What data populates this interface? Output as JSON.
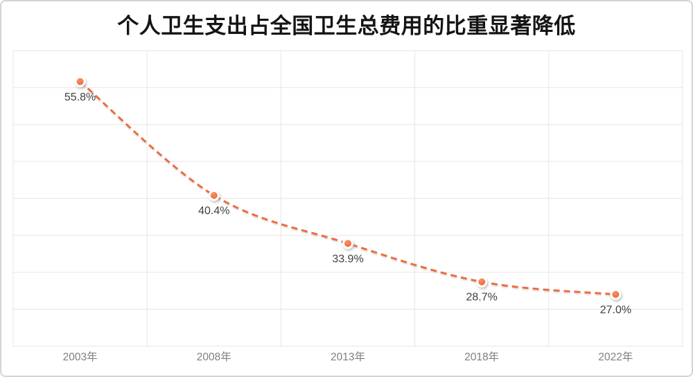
{
  "window": {
    "background": "#ffffff",
    "frame_border_color": "#d4d4d4"
  },
  "chart_data": {
    "type": "line",
    "title": "个人卫生支出占全国卫生总费用的比重显著降低",
    "categories": [
      "2003年",
      "2008年",
      "2013年",
      "2018年",
      "2022年"
    ],
    "values": [
      55.8,
      40.4,
      33.9,
      28.7,
      27.0
    ],
    "data_labels": [
      "55.8%",
      "40.4%",
      "33.9%",
      "28.7%",
      "27.0%"
    ],
    "xlabel": "",
    "ylabel": "",
    "ylim": [
      20,
      60
    ],
    "y_step": 5,
    "grid": "both",
    "legend": "none",
    "line_style": "dashed",
    "smooth": true,
    "marker": "circle",
    "colors": {
      "line": "#ED6C3C",
      "marker_fill_light": "#F99068",
      "marker_fill_dark": "#F0622E",
      "marker_ring": "#ffffff",
      "grid": "#e6e6e6",
      "data_label_text": "#404040",
      "axis_text": "#7f7f7f",
      "title_text": "#141414"
    }
  }
}
